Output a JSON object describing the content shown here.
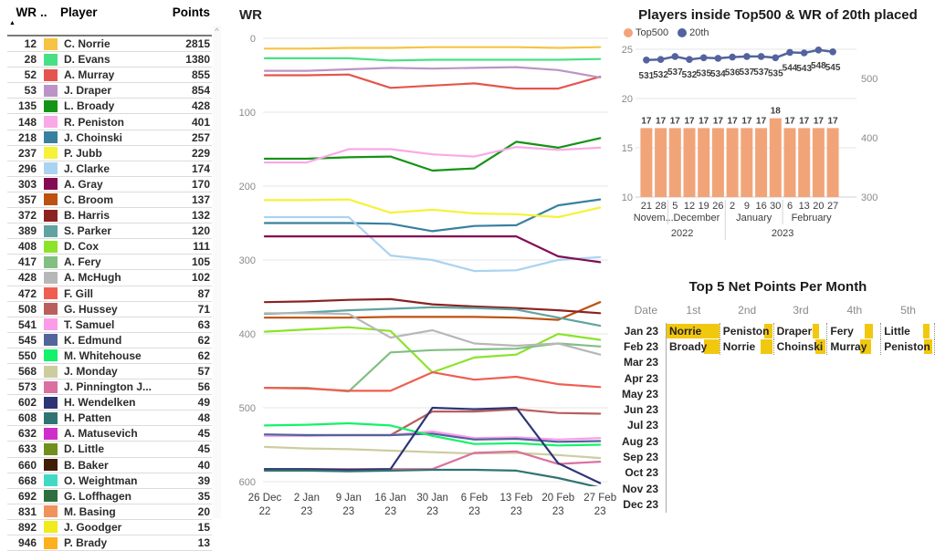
{
  "accent_colors": {
    "bar_orange": "#F2A479",
    "line_navy": "#54639E",
    "databar_yellow": "#F2C80F"
  },
  "left_table": {
    "headers": {
      "wr": "WR",
      "legend": "..",
      "player": "Player",
      "points": "Points"
    },
    "sort_icon": "▲",
    "scroll_up_icon": "^",
    "rows": [
      {
        "wr": 12,
        "color": "#F6C344",
        "player": "C. Norrie",
        "points": 2815
      },
      {
        "wr": 28,
        "color": "#49DF85",
        "player": "D. Evans",
        "points": 1380
      },
      {
        "wr": 52,
        "color": "#E4564D",
        "player": "A. Murray",
        "points": 855
      },
      {
        "wr": 53,
        "color": "#BC93C6",
        "player": "J. Draper",
        "points": 854
      },
      {
        "wr": 135,
        "color": "#149414",
        "player": "L. Broady",
        "points": 428
      },
      {
        "wr": 148,
        "color": "#FAA9E7",
        "player": "R. Peniston",
        "points": 401
      },
      {
        "wr": 218,
        "color": "#39809F",
        "player": "J. Choinski",
        "points": 257
      },
      {
        "wr": 237,
        "color": "#F6F238",
        "player": "P. Jubb",
        "points": 229
      },
      {
        "wr": 296,
        "color": "#AAD3F2",
        "player": "J. Clarke",
        "points": 174
      },
      {
        "wr": 303,
        "color": "#830C55",
        "player": "A. Gray",
        "points": 170
      },
      {
        "wr": 357,
        "color": "#BC5111",
        "player": "C. Broom",
        "points": 137
      },
      {
        "wr": 372,
        "color": "#8B2322",
        "player": "B. Harris",
        "points": 132
      },
      {
        "wr": 389,
        "color": "#60A3A0",
        "player": "S. Parker",
        "points": 120
      },
      {
        "wr": 408,
        "color": "#8BE32A",
        "player": "D. Cox",
        "points": 111
      },
      {
        "wr": 417,
        "color": "#83BE83",
        "player": "A. Fery",
        "points": 105
      },
      {
        "wr": 428,
        "color": "#B7B7B7",
        "player": "A. McHugh",
        "points": 102
      },
      {
        "wr": 472,
        "color": "#EF5E51",
        "player": "F. Gill",
        "points": 87
      },
      {
        "wr": 508,
        "color": "#B95E5D",
        "player": "G. Hussey",
        "points": 71
      },
      {
        "wr": 541,
        "color": "#FB9CE9",
        "player": "T. Samuel",
        "points": 63
      },
      {
        "wr": 545,
        "color": "#51649B",
        "player": "K. Edmund",
        "points": 62
      },
      {
        "wr": 550,
        "color": "#14F26B",
        "player": "M. Whitehouse",
        "points": 62
      },
      {
        "wr": 568,
        "color": "#CCCD9F",
        "player": "J. Monday",
        "points": 57
      },
      {
        "wr": 573,
        "color": "#DB709F",
        "player": "J. Pinnington J...",
        "points": 56
      },
      {
        "wr": 602,
        "color": "#2E3574",
        "player": "H. Wendelken",
        "points": 49
      },
      {
        "wr": 608,
        "color": "#307471",
        "player": "H. Patten",
        "points": 48
      },
      {
        "wr": 632,
        "color": "#D02ECB",
        "player": "A. Matusevich",
        "points": 45
      },
      {
        "wr": 633,
        "color": "#708F1D",
        "player": "D. Little",
        "points": 45
      },
      {
        "wr": 660,
        "color": "#401D06",
        "player": "B. Baker",
        "points": 40
      },
      {
        "wr": 668,
        "color": "#41D9C6",
        "player": "O. Weightman",
        "points": 39
      },
      {
        "wr": 692,
        "color": "#2F6E3E",
        "player": "G. Loffhagen",
        "points": 35
      },
      {
        "wr": 831,
        "color": "#F0925C",
        "player": "M. Basing",
        "points": 20
      },
      {
        "wr": 892,
        "color": "#F0EB1C",
        "player": "J. Goodger",
        "points": 15
      },
      {
        "wr": 946,
        "color": "#FFB01E",
        "player": "P. Brady",
        "points": 13
      }
    ]
  },
  "wr_chart": {
    "title": "WR",
    "type": "line",
    "y_ticks": [
      0,
      100,
      200,
      300,
      400,
      500,
      600
    ],
    "y_axis_inverted": true,
    "x_labels": [
      [
        "26 Dec",
        "22"
      ],
      [
        "2 Jan",
        "23"
      ],
      [
        "9 Jan",
        "23"
      ],
      [
        "16 Jan",
        "23"
      ],
      [
        "30 Jan",
        "23"
      ],
      [
        "6 Feb",
        "23"
      ],
      [
        "13 Feb",
        "23"
      ],
      [
        "20 Feb",
        "23"
      ],
      [
        "27 Feb",
        "23"
      ]
    ],
    "series": [
      {
        "name": "C. Norrie",
        "color": "#F6C344",
        "values": [
          14,
          14,
          13,
          13,
          12,
          12,
          12,
          13,
          12
        ]
      },
      {
        "name": "D. Evans",
        "color": "#49DF85",
        "values": [
          27,
          27,
          27,
          30,
          29,
          29,
          29,
          29,
          28
        ]
      },
      {
        "name": "A. Murray",
        "color": "#E4564D",
        "values": [
          50,
          50,
          49,
          67,
          64,
          61,
          68,
          68,
          52
        ]
      },
      {
        "name": "J. Draper",
        "color": "#BC93C6",
        "values": [
          44,
          44,
          42,
          40,
          41,
          40,
          39,
          43,
          53
        ]
      },
      {
        "name": "L. Broady",
        "color": "#149414",
        "values": [
          163,
          163,
          161,
          160,
          179,
          176,
          140,
          148,
          135
        ]
      },
      {
        "name": "R. Peniston",
        "color": "#FAA9E7",
        "values": [
          168,
          168,
          150,
          150,
          157,
          160,
          147,
          151,
          148
        ]
      },
      {
        "name": "J. Choinski",
        "color": "#39809F",
        "values": [
          250,
          250,
          250,
          251,
          261,
          254,
          253,
          226,
          218
        ]
      },
      {
        "name": "P. Jubb",
        "color": "#F6F238",
        "values": [
          219,
          219,
          218,
          236,
          232,
          237,
          238,
          242,
          229
        ]
      },
      {
        "name": "J. Clarke",
        "color": "#AAD3F2",
        "values": [
          242,
          242,
          242,
          294,
          300,
          315,
          314,
          300,
          296
        ]
      },
      {
        "name": "A. Gray",
        "color": "#830C55",
        "values": [
          268,
          268,
          268,
          268,
          268,
          268,
          268,
          295,
          303
        ]
      },
      {
        "name": "C. Broom",
        "color": "#BC5111",
        "values": [
          378,
          378,
          378,
          377,
          377,
          377,
          378,
          381,
          357
        ]
      },
      {
        "name": "B. Harris",
        "color": "#8B2322",
        "values": [
          357,
          356,
          354,
          353,
          360,
          363,
          365,
          368,
          372
        ]
      },
      {
        "name": "S. Parker",
        "color": "#60A3A0",
        "values": [
          373,
          371,
          368,
          366,
          364,
          365,
          367,
          378,
          389
        ]
      },
      {
        "name": "D. Cox",
        "color": "#8BE32A",
        "values": [
          397,
          394,
          391,
          396,
          452,
          432,
          428,
          400,
          408
        ]
      },
      {
        "name": "A. Fery",
        "color": "#83BE83",
        "values": [
          473,
          473,
          478,
          425,
          422,
          421,
          420,
          413,
          417
        ]
      },
      {
        "name": "A. McHugh",
        "color": "#B7B7B7",
        "values": [
          372,
          372,
          373,
          405,
          395,
          413,
          416,
          413,
          428
        ]
      },
      {
        "name": "F. Gill",
        "color": "#EF5E51",
        "values": [
          473,
          474,
          477,
          477,
          452,
          462,
          458,
          468,
          472
        ]
      },
      {
        "name": "G. Hussey",
        "color": "#B95E5D",
        "values": [
          537,
          537,
          537,
          537,
          505,
          505,
          502,
          507,
          508
        ]
      },
      {
        "name": "T. Samuel",
        "color": "#FB9CE9",
        "values": [
          538,
          538,
          537,
          537,
          532,
          541,
          540,
          543,
          541
        ]
      },
      {
        "name": "K. Edmund",
        "color": "#51649B",
        "values": [
          536,
          537,
          537,
          537,
          535,
          543,
          542,
          546,
          545
        ]
      },
      {
        "name": "M. Whitehouse",
        "color": "#14F26B",
        "values": [
          524,
          523,
          521,
          524,
          538,
          549,
          548,
          551,
          550
        ]
      },
      {
        "name": "J. Monday",
        "color": "#CCCD9F",
        "values": [
          553,
          555,
          556,
          558,
          560,
          562,
          561,
          564,
          568
        ]
      },
      {
        "name": "J. Pinnington J.",
        "color": "#DB709F",
        "values": [
          583,
          583,
          583,
          583,
          583,
          561,
          559,
          576,
          573
        ]
      },
      {
        "name": "H. Wendelken",
        "color": "#2E3574",
        "values": [
          583,
          583,
          584,
          583,
          500,
          502,
          500,
          575,
          602
        ]
      },
      {
        "name": "H. Patten",
        "color": "#307471",
        "values": [
          585,
          585,
          586,
          585,
          584,
          584,
          585,
          595,
          608
        ]
      }
    ]
  },
  "top500_chart": {
    "title": "Players inside Top500 & WR of 20th placed",
    "type": "combo-bar-line",
    "legend": [
      {
        "label": "Top500",
        "color": "#F2A479"
      },
      {
        "label": "20th",
        "color": "#54639E"
      }
    ],
    "day_labels": [
      "21",
      "28",
      "5",
      "12",
      "19",
      "26",
      "2",
      "9",
      "16",
      "30",
      "6",
      "13",
      "20",
      "27"
    ],
    "month_groups": [
      {
        "label": "Novem...",
        "span": 2
      },
      {
        "label": "December",
        "span": 4
      },
      {
        "label": "January",
        "span": 4
      },
      {
        "label": "February",
        "span": 4
      }
    ],
    "year_groups": [
      {
        "label": "2022",
        "span": 6
      },
      {
        "label": "2023",
        "span": 8
      }
    ],
    "bar_values": [
      17,
      17,
      17,
      17,
      17,
      17,
      17,
      17,
      17,
      18,
      17,
      17,
      17,
      17
    ],
    "line_values": [
      531,
      532,
      537,
      532,
      535,
      534,
      536,
      537,
      537,
      535,
      544,
      543,
      548,
      545
    ],
    "left_ticks": [
      25,
      20,
      15,
      10
    ],
    "right_ticks": [
      500,
      400,
      300
    ]
  },
  "top5_table": {
    "title": "Top 5 Net Points Per Month",
    "columns": [
      "Date",
      "1st",
      "2nd",
      "3rd",
      "4th",
      "5th"
    ],
    "rows": [
      {
        "date": "Jan 23",
        "cells": [
          {
            "name": "Norrie",
            "bar": "full",
            "right": 0
          },
          {
            "name": "Peniston",
            "bar": 9,
            "right": 1
          },
          {
            "name": "Draper",
            "bar": 7,
            "right": 8
          },
          {
            "name": "Fery",
            "bar": 9,
            "right": 8
          },
          {
            "name": "Little",
            "bar": 7,
            "right": 5
          }
        ]
      },
      {
        "date": "Feb 23",
        "cells": [
          {
            "name": "Broady",
            "bar": 17,
            "right": 0
          },
          {
            "name": "Norrie",
            "bar": 13,
            "right": 1
          },
          {
            "name": "Choinski",
            "bar": 11,
            "right": 1
          },
          {
            "name": "Murray",
            "bar": 12,
            "right": 10
          },
          {
            "name": "Peniston",
            "bar": 9,
            "right": 2
          }
        ]
      },
      {
        "date": "Mar 23",
        "cells": []
      },
      {
        "date": "Apr 23",
        "cells": []
      },
      {
        "date": "May 23",
        "cells": []
      },
      {
        "date": "Jun 23",
        "cells": []
      },
      {
        "date": "Jul 23",
        "cells": []
      },
      {
        "date": "Aug 23",
        "cells": []
      },
      {
        "date": "Sep 23",
        "cells": []
      },
      {
        "date": "Oct 23",
        "cells": []
      },
      {
        "date": "Nov 23",
        "cells": []
      },
      {
        "date": "Dec 23",
        "cells": []
      }
    ]
  }
}
